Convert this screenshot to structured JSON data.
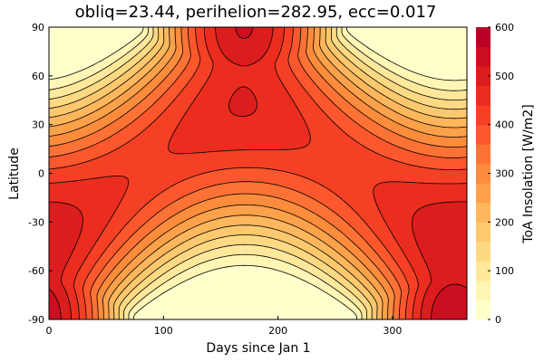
{
  "chart_data": {
    "type": "heatmap",
    "title": "obliq=23.44, perihelion=282.95, ecc=0.017",
    "xlabel": "Days since Jan 1",
    "ylabel": "Latitude",
    "colorbar_label": "ToA Insolation [W/m2]",
    "xlim": [
      0,
      365
    ],
    "ylim": [
      -90,
      90
    ],
    "zlim": [
      0,
      600
    ],
    "x_ticks": [
      0,
      100,
      200,
      300
    ],
    "y_ticks": [
      -90,
      -60,
      -30,
      0,
      30,
      60,
      90
    ],
    "colorbar_ticks": [
      0,
      100,
      200,
      300,
      400,
      500,
      600
    ],
    "x_tick_labels": [
      "0",
      "100",
      "200",
      "300"
    ],
    "y_tick_labels": [
      "-90",
      "-60",
      "-30",
      "0",
      "30",
      "60",
      "90"
    ],
    "colorbar_tick_labels": [
      "0",
      "100",
      "200",
      "300",
      "400",
      "500",
      "600"
    ],
    "contour_levels": [
      0,
      40,
      80,
      120,
      160,
      200,
      240,
      280,
      320,
      360,
      400,
      440,
      480,
      520,
      560,
      600
    ],
    "colorscale": [
      "#ffffcc",
      "#fff3b0",
      "#ffe493",
      "#fed177",
      "#febe62",
      "#fea44d",
      "#fd8c3c",
      "#fd6e34",
      "#fc4e2a",
      "#f03622",
      "#e2211c",
      "#ce1220",
      "#b90026"
    ],
    "parameters": {
      "obliquity": 23.44,
      "perihelion": 282.95,
      "eccentricity": 0.017
    }
  }
}
